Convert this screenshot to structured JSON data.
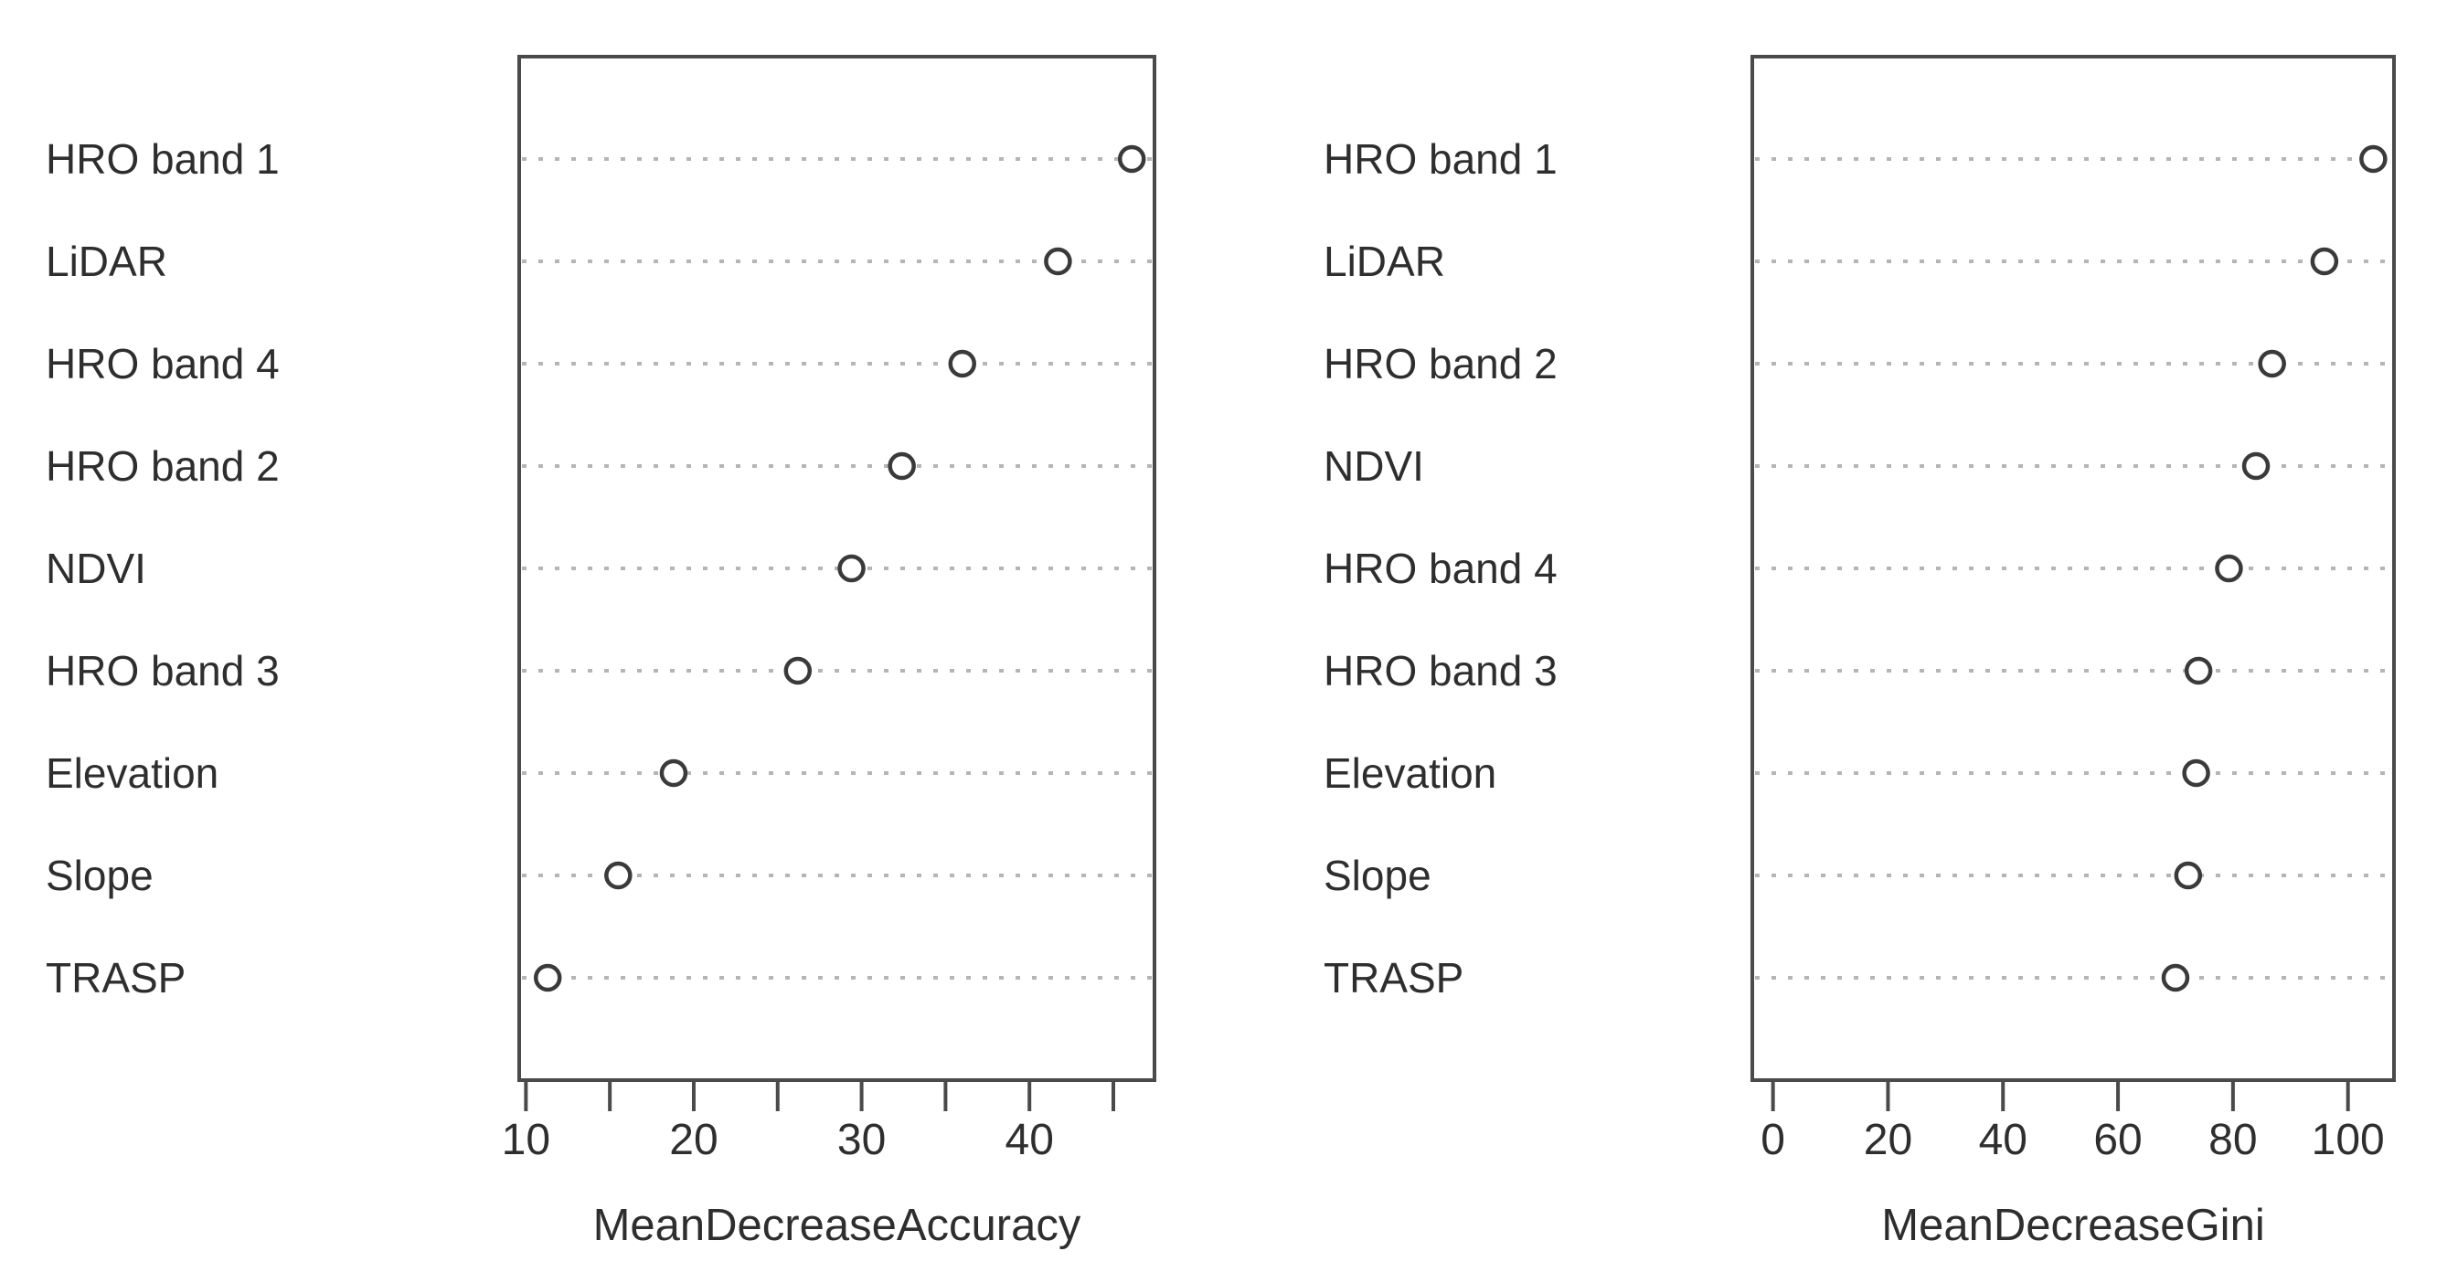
{
  "figure": {
    "description": "Random forest variable importance dot charts",
    "background": "#ffffff"
  },
  "style": {
    "text_color": "#2e2e2e",
    "box_color": "#4a4a4a",
    "grid_color": "#b5b5b5",
    "point_stroke": "#3a3a3a",
    "point_fill": "#ffffff"
  },
  "chart_data": [
    {
      "type": "scatter",
      "chart_kind": "dotchart",
      "title": "",
      "xlabel": "MeanDecreaseAccuracy",
      "ylabel": "",
      "categories": [
        "HRO band 1",
        "LiDAR",
        "HRO band 4",
        "HRO band 2",
        "NDVI",
        "HRO band 3",
        "Elevation",
        "Slope",
        "TRASP"
      ],
      "values": [
        46.1,
        41.7,
        36.0,
        32.4,
        29.4,
        26.2,
        18.8,
        15.5,
        11.3
      ],
      "xlim": [
        9.6,
        47.45
      ],
      "xticks": [
        10,
        15,
        20,
        25,
        30,
        35,
        40,
        45
      ],
      "xtick_labels": [
        "10",
        "",
        "20",
        "",
        "30",
        "",
        "40",
        ""
      ],
      "grid": "dotted-horizontal",
      "legend": "none",
      "point_marker": "open-circle"
    },
    {
      "type": "scatter",
      "chart_kind": "dotchart",
      "title": "",
      "xlabel": "MeanDecreaseGini",
      "ylabel": "",
      "categories": [
        "HRO band 1",
        "LiDAR",
        "HRO band 2",
        "NDVI",
        "HRO band 4",
        "HRO band 3",
        "Elevation",
        "Slope",
        "TRASP"
      ],
      "values": [
        104.4,
        95.9,
        86.8,
        84.0,
        79.3,
        74.0,
        73.6,
        72.2,
        70.0
      ],
      "xlim": [
        -3.6,
        108
      ],
      "xticks": [
        0,
        20,
        40,
        60,
        80,
        100
      ],
      "xtick_labels": [
        "0",
        "20",
        "40",
        "60",
        "80",
        "100"
      ],
      "grid": "dotted-horizontal",
      "legend": "none",
      "point_marker": "open-circle"
    }
  ]
}
